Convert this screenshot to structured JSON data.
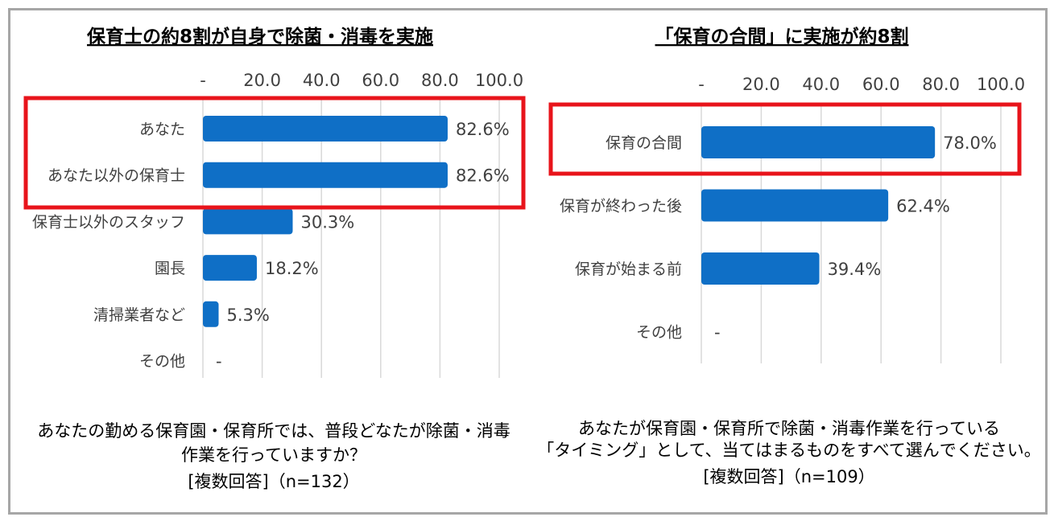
{
  "colors": {
    "bar": "#0f6fc6",
    "highlight": "#e8141b",
    "grid": "#d9d9d9",
    "frame": "#a6a6a6"
  },
  "chart_data": [
    {
      "type": "bar",
      "orientation": "horizontal",
      "title": "保育士の約8割が自身で除菌・消毒を実施",
      "categories": [
        "あなた",
        "あなた以外の保育士",
        "保育士以外のスタッフ",
        "園長",
        "清掃業者など",
        "その他"
      ],
      "values": [
        82.6,
        82.6,
        30.3,
        18.2,
        5.3,
        0
      ],
      "value_labels": [
        "82.6%",
        "82.6%",
        "30.3%",
        "18.2%",
        "5.3%",
        "-"
      ],
      "ticks": [
        "-",
        "20.0",
        "40.0",
        "60.0",
        "80.0",
        "100.0"
      ],
      "xlim": [
        0,
        100
      ],
      "grid": true,
      "highlight_rows": [
        0,
        1
      ],
      "question": [
        "あなたの勤める保育園・保育所では、普段どなたが除菌・消毒",
        "作業を行っていますか？",
        "[複数回答]（n=132）"
      ]
    },
    {
      "type": "bar",
      "orientation": "horizontal",
      "title": "「保育の合間」に実施が約8割",
      "categories": [
        "保育の合間",
        "保育が終わった後",
        "保育が始まる前",
        "その他"
      ],
      "values": [
        78.0,
        62.4,
        39.4,
        0
      ],
      "value_labels": [
        "78.0%",
        "62.4%",
        "39.4%",
        "-"
      ],
      "ticks": [
        "-",
        "20.0",
        "40.0",
        "60.0",
        "80.0",
        "100.0"
      ],
      "xlim": [
        0,
        100
      ],
      "grid": true,
      "highlight_rows": [
        0
      ],
      "question": [
        "あなたが保育園・保育所で除菌・消毒作業を行っている",
        "「タイミング」として、当てはまるものをすべて選んでください。",
        "[複数回答]（n=109）"
      ]
    }
  ]
}
